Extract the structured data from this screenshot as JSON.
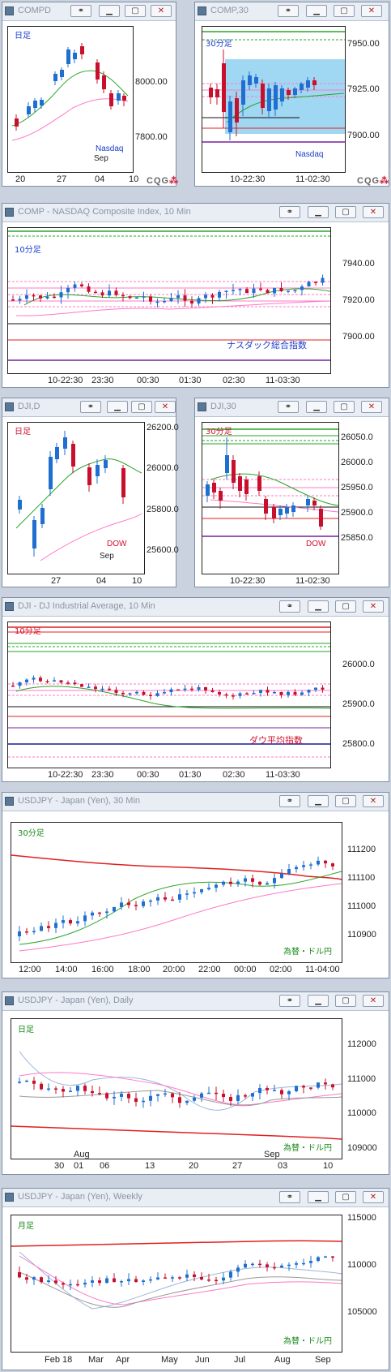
{
  "colors": {
    "up": "#1f6fd1",
    "down": "#c8102e",
    "green": "#2aa52a",
    "pink": "#ff78c8",
    "red": "#e02020",
    "black": "#111111",
    "purple": "#7a1fa2",
    "navy": "#1a1a9c",
    "highlight": "#8fd0f0"
  },
  "windows": [
    {
      "id": "compd",
      "title": "COMPD",
      "period_label": "日足",
      "period_color": "#1a3ccc",
      "name_label": "Nasdaq",
      "name_color": "#1a3ccc",
      "y_labels": [
        "8000.00",
        "7800.00"
      ],
      "x_labels": [
        "20",
        "27",
        "04",
        "10"
      ],
      "month_label": "Sep",
      "logo": "CQG"
    },
    {
      "id": "comp30",
      "title": "COMP,30",
      "period_label": "30分足",
      "period_color": "#1a3ccc",
      "name_label": "Nasdaq",
      "name_color": "#1a3ccc",
      "y_labels": [
        "7950.00",
        "7925.00",
        "7900.00"
      ],
      "x_labels": [
        "10-22:30",
        "11-02:30"
      ],
      "logo": "CQG"
    },
    {
      "id": "comp10",
      "title": "COMP - NASDAQ Composite Index, 10 Min",
      "period_label": "10分足",
      "period_color": "#1a3ccc",
      "name_label": "ナスダック総合指数",
      "name_color": "#1a3ccc",
      "y_labels": [
        "7940.00",
        "7920.00",
        "7900.00"
      ],
      "x_labels": [
        "10-22:30",
        "23:30",
        "00:30",
        "01:30",
        "02:30",
        "11-03:30"
      ]
    },
    {
      "id": "djid",
      "title": "DJI,D",
      "period_label": "日足",
      "period_color": "#d0102a",
      "name_label": "DOW",
      "name_color": "#d0102a",
      "y_labels": [
        "26200.0",
        "26000.0",
        "25800.0",
        "25600.0"
      ],
      "x_labels": [
        "27",
        "04",
        "10"
      ],
      "month_label": "Sep"
    },
    {
      "id": "dji30",
      "title": "DJI,30",
      "period_label": "30分足",
      "period_color": "#d0102a",
      "name_label": "DOW",
      "name_color": "#d0102a",
      "y_labels": [
        "26050.0",
        "26000.0",
        "25950.0",
        "25900.0",
        "25850.0"
      ],
      "x_labels": [
        "10-22:30",
        "11-02:30"
      ]
    },
    {
      "id": "dji10",
      "title": "DJI - DJ Industrial Average, 10 Min",
      "period_label": "10分足",
      "period_color": "#d0102a",
      "name_label": "ダウ平均指数",
      "name_color": "#d0102a",
      "y_labels": [
        "26000.0",
        "25900.0",
        "25800.0"
      ],
      "x_labels": [
        "10-22:30",
        "23:30",
        "00:30",
        "01:30",
        "02:30",
        "11-03:30"
      ]
    },
    {
      "id": "usd30",
      "title": "USDJPY - Japan (Yen), 30 Min",
      "period_label": "30分足",
      "period_color": "#1a8a1a",
      "name_label": "為替・ドル円",
      "name_color": "#1a8a1a",
      "y_labels": [
        "111200",
        "111100",
        "111000",
        "110900"
      ],
      "x_labels": [
        "12:00",
        "14:00",
        "16:00",
        "18:00",
        "20:00",
        "22:00",
        "00:00",
        "02:00",
        "11-04:00"
      ]
    },
    {
      "id": "usdd",
      "title": "USDJPY - Japan (Yen), Daily",
      "period_label": "日足",
      "period_color": "#1a8a1a",
      "name_label": "為替・ドル円",
      "name_color": "#1a8a1a",
      "y_labels": [
        "112000",
        "111000",
        "110000",
        "109000"
      ],
      "x_labels": [
        "30",
        "01",
        "06",
        "13",
        "20",
        "27",
        "03",
        "10"
      ],
      "month_labels": [
        "Aug",
        "Sep"
      ]
    },
    {
      "id": "usdw",
      "title": "USDJPY - Japan (Yen), Weekly",
      "period_label": "月足",
      "period_color": "#1a8a1a",
      "name_label": "為替・ドル円",
      "name_color": "#1a8a1a",
      "y_labels": [
        "115000",
        "110000",
        "105000"
      ],
      "x_labels": [
        "Feb 18",
        "Mar",
        "Apr",
        "May",
        "Jun",
        "Jul",
        "Aug",
        "Sep"
      ]
    }
  ]
}
